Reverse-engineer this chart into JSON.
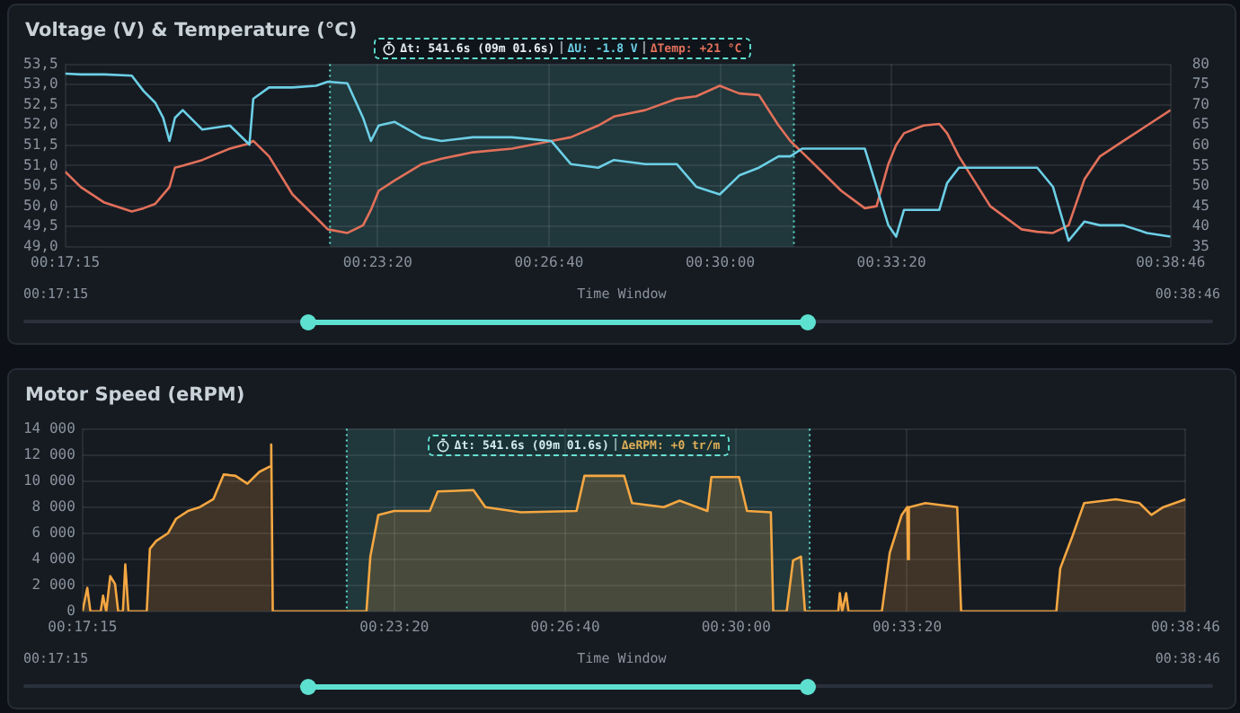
{
  "chart_data": [
    {
      "type": "line",
      "title": "Voltage (V) & Temperature (°C)",
      "xlabel": "Time Window",
      "marker": "none",
      "grid": true,
      "legend": false,
      "x": [
        0.2875,
        0.29258,
        0.30022,
        0.30911,
        0.31294,
        0.31675,
        0.31928,
        0.32133,
        0.32311,
        0.32564,
        0.332,
        0.34092,
        0.34728,
        0.34853,
        0.35364,
        0.36125,
        0.36889,
        0.37269,
        0.37906,
        0.38414,
        0.38669,
        0.38922,
        0.39431,
        0.40322,
        0.40958,
        0.41975,
        0.43247,
        0.44519,
        0.45153,
        0.46044,
        0.46553,
        0.47569,
        0.48589,
        0.49222,
        0.49986,
        0.50622,
        0.51258,
        0.51894,
        0.52275,
        0.52656,
        0.53167,
        0.53928,
        0.54692,
        0.55072,
        0.55456,
        0.55708,
        0.55964,
        0.566,
        0.57108,
        0.57361,
        0.57744,
        0.58761,
        0.59778,
        0.60286,
        0.60794,
        0.61303,
        0.61814,
        0.62322,
        0.63083,
        0.63847,
        0.64611
      ],
      "series": [
        {
          "color": "#6ccfe6",
          "values": [
            53.27,
            53.25,
            53.25,
            53.22,
            52.84,
            52.55,
            52.18,
            51.61,
            52.18,
            52.37,
            51.89,
            51.99,
            51.52,
            52.65,
            52.93,
            52.93,
            52.97,
            53.07,
            53.03,
            52.18,
            51.61,
            51.99,
            52.08,
            51.7,
            51.61,
            51.7,
            51.7,
            51.61,
            51.04,
            50.95,
            51.14,
            51.04,
            51.04,
            50.48,
            50.29,
            50.76,
            50.95,
            51.23,
            51.23,
            51.42,
            51.42,
            51.42,
            51.42,
            50.48,
            49.53,
            49.25,
            49.91,
            49.91,
            49.91,
            50.57,
            50.95,
            50.95,
            50.95,
            50.95,
            50.48,
            49.15,
            49.62,
            49.53,
            49.53,
            49.34,
            49.25
          ]
        },
        {
          "color": "#e2705a",
          "axis": "y2",
          "values": [
            53.5,
            49.7,
            45.9,
            43.7,
            44.5,
            45.6,
            47.9,
            49.7,
            54.5,
            55,
            56.4,
            59.2,
            60.5,
            61.1,
            57.3,
            47.9,
            42.2,
            39.3,
            38.4,
            40.3,
            44.1,
            48.8,
            51.3,
            55.4,
            56.7,
            58.3,
            59.2,
            61.1,
            62,
            64.9,
            67.1,
            68.7,
            71.5,
            72.1,
            74.7,
            72.8,
            72.4,
            64.9,
            61.1,
            58.3,
            54.5,
            48.8,
            44.5,
            45,
            55.4,
            60.1,
            63,
            64.9,
            65.3,
            63,
            57.3,
            45,
            39.3,
            38.7,
            38.4,
            40.3,
            51.6,
            57.3,
            61.1,
            64.9,
            68.7
          ]
        }
      ],
      "xlim": [
        0.2875,
        0.64611
      ],
      "xticks": [
        {
          "value": 0.2875,
          "label": "00:17:15"
        },
        {
          "value": 0.38889,
          "label": "00:23:20"
        },
        {
          "value": 0.44444,
          "label": "00:26:40"
        },
        {
          "value": 0.5,
          "label": "00:30:00"
        },
        {
          "value": 0.55556,
          "label": "00:33:20"
        },
        {
          "value": 0.64611,
          "label": "00:38:46"
        }
      ],
      "ylim": [
        49,
        53.5
      ],
      "yticks": [
        {
          "value": 49,
          "label": "49,0"
        },
        {
          "value": 49.5,
          "label": "49,5"
        },
        {
          "value": 50,
          "label": "50,0"
        },
        {
          "value": 50.5,
          "label": "50,5"
        },
        {
          "value": 51,
          "label": "51,0"
        },
        {
          "value": 51.5,
          "label": "51,5"
        },
        {
          "value": 52,
          "label": "52,0"
        },
        {
          "value": 52.5,
          "label": "52,5"
        },
        {
          "value": 53,
          "label": "53,0"
        },
        {
          "value": 53.5,
          "label": "53,5"
        }
      ],
      "y2lim": [
        35,
        80
      ],
      "y2ticks": [
        35,
        40,
        45,
        50,
        55,
        60,
        65,
        70,
        75,
        80
      ],
      "bands": [
        {
          "axis": "x",
          "from": 0.3734,
          "to": 0.5239,
          "color": "#5ee0d0"
        }
      ],
      "ref_lines": [
        {
          "axis": "x",
          "value": 0.3734,
          "color": "#5ee0d0",
          "line_style": "dotted"
        },
        {
          "axis": "x",
          "value": 0.5239,
          "color": "#5ee0d0",
          "line_style": "dotted"
        }
      ],
      "annotations": [
        "Δt: 541.6s (09m 01.6s)",
        "ΔU: -1.8 V",
        "ΔTemp: +21 °C"
      ]
    },
    {
      "type": "area",
      "title": "Motor Speed (eRPM)",
      "xlabel": "Time Window",
      "marker": "none",
      "grid": true,
      "legend": false,
      "color": "#f5a742",
      "x": [
        0.2875,
        0.28828,
        0.28906,
        0.29008,
        0.29342,
        0.29419,
        0.29522,
        0.29653,
        0.29808,
        0.29911,
        0.30064,
        0.30142,
        0.30244,
        0.30839,
        0.30942,
        0.31147,
        0.31533,
        0.31792,
        0.32178,
        0.32567,
        0.33003,
        0.33339,
        0.33725,
        0.34111,
        0.345,
        0.34833,
        0.34886,
        0.34936,
        0.37333,
        0.37981,
        0.38108,
        0.38367,
        0.38881,
        0.40042,
        0.403,
        0.41458,
        0.41847,
        0.43006,
        0.44811,
        0.45069,
        0.46358,
        0.46617,
        0.47647,
        0.48161,
        0.49064,
        0.49194,
        0.50094,
        0.50353,
        0.51128,
        0.51206,
        0.51642,
        0.5185,
        0.52106,
        0.52236,
        0.53319,
        0.53369,
        0.53447,
        0.53575,
        0.53653,
        0.54736,
        0.54994,
        0.55381,
        0.55561,
        0.55586,
        0.55614,
        0.55639,
        0.56153,
        0.57186,
        0.57314,
        0.60408,
        0.60536,
        0.60922,
        0.61311,
        0.62342,
        0.63114,
        0.635,
        0.63889,
        0.64611
      ],
      "values": [
        0,
        900,
        1800,
        0,
        0,
        1200,
        0,
        2700,
        2100,
        0,
        0,
        3600,
        0,
        0,
        4800,
        5400,
        6000,
        7100,
        7700,
        8000,
        8600,
        10500,
        10400,
        9800,
        10700,
        11100,
        12800,
        0,
        0,
        0,
        4200,
        7400,
        7700,
        7700,
        9200,
        9300,
        8000,
        7600,
        7700,
        10400,
        10400,
        8300,
        8000,
        8500,
        7700,
        10300,
        10300,
        7700,
        7600,
        0,
        0,
        3900,
        4200,
        0,
        0,
        1400,
        0,
        1400,
        0,
        0,
        4500,
        7400,
        8000,
        4000,
        8000,
        8000,
        8300,
        8000,
        0,
        0,
        3300,
        5700,
        8300,
        8600,
        8300,
        7400,
        8000,
        8600
      ],
      "xlim": [
        0.2875,
        0.64611
      ],
      "xticks": [
        {
          "value": 0.2875,
          "label": "00:17:15"
        },
        {
          "value": 0.38889,
          "label": "00:23:20"
        },
        {
          "value": 0.44444,
          "label": "00:26:40"
        },
        {
          "value": 0.5,
          "label": "00:30:00"
        },
        {
          "value": 0.55556,
          "label": "00:33:20"
        },
        {
          "value": 0.64611,
          "label": "00:38:46"
        }
      ],
      "ylim": [
        0,
        14000
      ],
      "yticks": [
        0,
        {
          "value": 2000,
          "label": "2 000"
        },
        {
          "value": 4000,
          "label": "4 000"
        },
        {
          "value": 6000,
          "label": "6 000"
        },
        {
          "value": 8000,
          "label": "8 000"
        },
        {
          "value": 10000,
          "label": "10 000"
        },
        {
          "value": 12000,
          "label": "12 000"
        },
        {
          "value": 14000,
          "label": "14 000"
        }
      ],
      "bands": [
        {
          "axis": "x",
          "from": 0.3734,
          "to": 0.5239,
          "color": "#5ee0d0"
        }
      ],
      "ref_lines": [
        {
          "axis": "x",
          "value": 0.3734,
          "color": "#5ee0d0",
          "line_style": "dotted"
        },
        {
          "axis": "x",
          "value": 0.5239,
          "color": "#5ee0d0",
          "line_style": "dotted"
        }
      ],
      "annotations": [
        "Δt: 541.6s (09m 01.6s)",
        "ΔeRPM: +0 tr/m"
      ]
    }
  ]
}
